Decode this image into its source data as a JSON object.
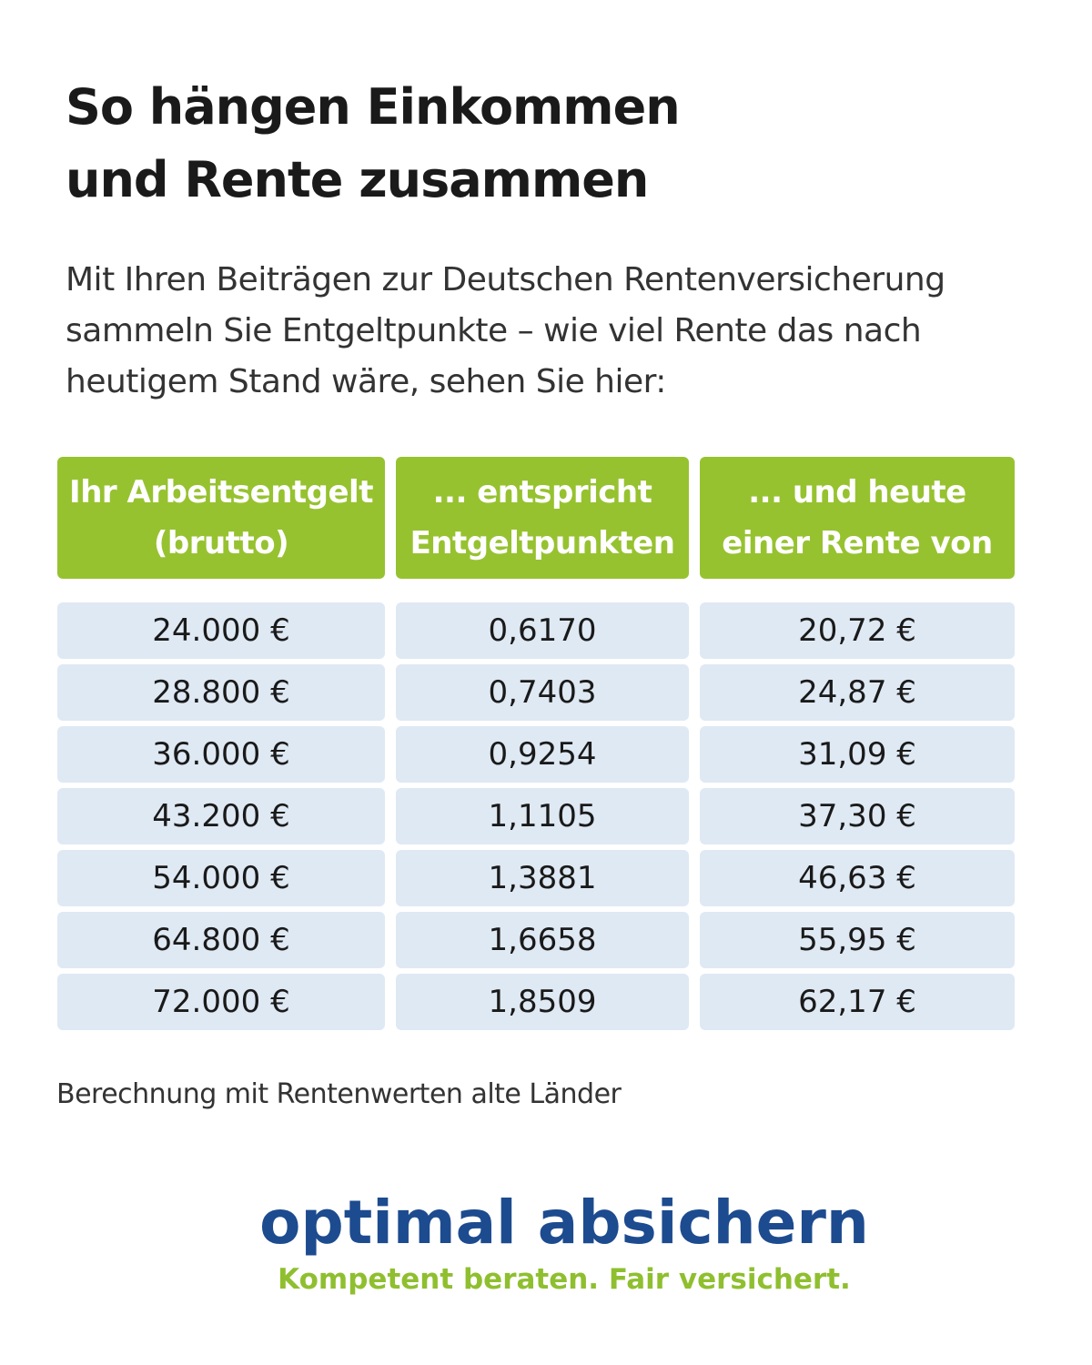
{
  "header": {
    "title": [
      "So hängen Einkommen",
      "und Rente zusammen"
    ],
    "intro": "Mit Ihren Beiträgen zur Deutschen Rentenversicherung sammeln Sie Entgeltpunkte – wie viel Rente das nach heutigem Stand wäre, sehen Sie hier:"
  },
  "table": {
    "columns": [
      [
        "Ihr Arbeitsentgelt",
        "(brutto)"
      ],
      [
        "... entspricht",
        "Entgeltpunkten"
      ],
      [
        "... und heute",
        "einer Rente von"
      ]
    ],
    "rows": [
      [
        "24.000 €",
        "0,6170",
        "20,72 €"
      ],
      [
        "28.800 €",
        "0,7403",
        "24,87 €"
      ],
      [
        "36.000 €",
        "0,9254",
        "31,09 €"
      ],
      [
        "43.200 €",
        "1,1105",
        "37,30 €"
      ],
      [
        "54.000 €",
        "1,3881",
        "46,63 €"
      ],
      [
        "64.800 €",
        "1,6658",
        "55,95 €"
      ],
      [
        "72.000 €",
        "1,8509",
        "62,17 €"
      ]
    ]
  },
  "footnote": "Berechnung mit Rentenwerten alte Länder",
  "brand": {
    "name": "optimal absichern",
    "slogan": "Kompetent beraten. Fair versichert."
  }
}
